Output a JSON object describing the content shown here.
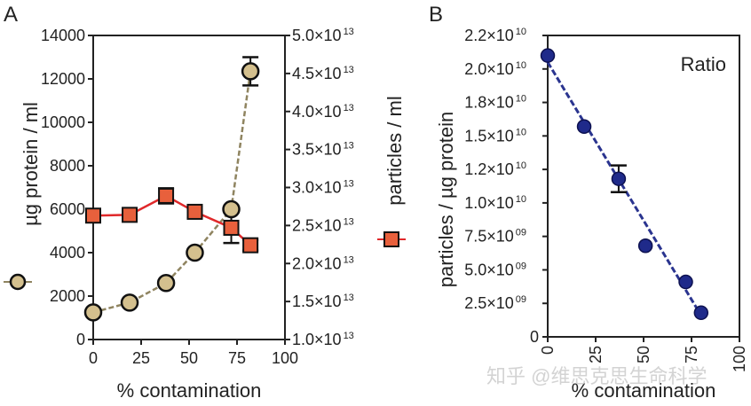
{
  "chart_data": [
    {
      "panel_label": "A",
      "type": "line",
      "xlabel": "% contamination",
      "xlim": [
        0,
        100
      ],
      "xticks": [
        "0",
        "25",
        "50",
        "75",
        "100"
      ],
      "ylabel_left": "µg protein / ml",
      "ylim_left": [
        0,
        14000
      ],
      "yticks_left": [
        "0",
        "2000",
        "4000",
        "6000",
        "8000",
        "10000",
        "12000",
        "14000"
      ],
      "ylabel_right": "particles / ml",
      "ylim_right": [
        10000000000000.0,
        50000000000000.0
      ],
      "yticks_right": [
        {
          "mant": "1.0×10",
          "exp": "13"
        },
        {
          "mant": "1.5×10",
          "exp": "13"
        },
        {
          "mant": "2.0×10",
          "exp": "13"
        },
        {
          "mant": "2.5×10",
          "exp": "13"
        },
        {
          "mant": "3.0×10",
          "exp": "13"
        },
        {
          "mant": "3.5×10",
          "exp": "13"
        },
        {
          "mant": "4.0×10",
          "exp": "13"
        },
        {
          "mant": "4.5×10",
          "exp": "13"
        },
        {
          "mant": "5.0×10",
          "exp": "13"
        }
      ],
      "grid": false,
      "series": [
        {
          "name": "µg protein / ml",
          "axis": "left",
          "marker": "circle",
          "line": "dashed",
          "color": "#d4c08e",
          "line_color": "#8f8460",
          "x": [
            0,
            19,
            38,
            53,
            72,
            82
          ],
          "y": [
            1250,
            1700,
            2600,
            4000,
            6000,
            12350
          ],
          "err": [
            0,
            0,
            0,
            0,
            0,
            650
          ]
        },
        {
          "name": "particles / ml",
          "axis": "right",
          "marker": "square",
          "line": "solid",
          "color": "#e8603c",
          "line_color": "#e0282a",
          "x": [
            0,
            19,
            38,
            53,
            72,
            82
          ],
          "y": [
            26300000000000.0,
            26400000000000.0,
            28900000000000.0,
            26800000000000.0,
            24700000000000.0,
            22400000000000.0
          ],
          "err": [
            0,
            0,
            1000000000000.0,
            800000000000.0,
            2000000000000.0,
            700000000000.0
          ]
        }
      ]
    },
    {
      "panel_label": "B",
      "type": "scatter",
      "title": "Ratio",
      "xlabel": "% contamination",
      "xlim": [
        0,
        100
      ],
      "xticks": [
        "0",
        "25",
        "50",
        "75",
        "100"
      ],
      "ylabel": "particles / µg protein",
      "ylim": [
        0,
        22500000000.0
      ],
      "yticks": [
        {
          "mant": "0",
          "exp": ""
        },
        {
          "mant": "2.5×10",
          "exp": "09"
        },
        {
          "mant": "5.0×10",
          "exp": "09"
        },
        {
          "mant": "7.5×10",
          "exp": "09"
        },
        {
          "mant": "1.0×10",
          "exp": "10"
        },
        {
          "mant": "1.2×10",
          "exp": "10"
        },
        {
          "mant": "1.5×10",
          "exp": "10"
        },
        {
          "mant": "1.8×10",
          "exp": "10"
        },
        {
          "mant": "2.0×10",
          "exp": "10"
        },
        {
          "mant": "2.2×10",
          "exp": "10"
        }
      ],
      "grid": false,
      "series": [
        {
          "name": "Ratio",
          "marker": "circle",
          "color": "#1f2a8a",
          "x": [
            0,
            19,
            37,
            51,
            72,
            80
          ],
          "y": [
            21000000000.0,
            15700000000.0,
            11800000000.0,
            6800000000.0,
            4100000000.0,
            1800000000.0
          ],
          "err": [
            0,
            0,
            1000000000.0,
            0,
            0,
            0
          ]
        }
      ],
      "fit_line": {
        "x": [
          0,
          80
        ],
        "y": [
          20500000000.0,
          1600000000.0
        ],
        "style": "dashed",
        "color": "#2a348f"
      }
    }
  ],
  "watermark": "知乎 @维思克思生命科学"
}
